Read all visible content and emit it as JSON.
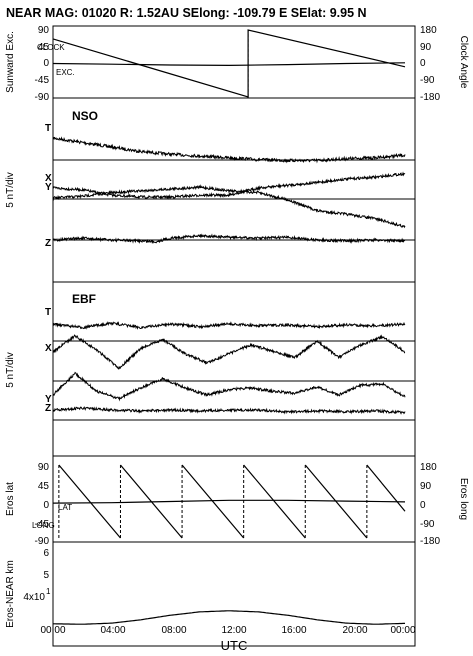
{
  "header": {
    "title": "NEAR MAG: 01020  R: 1.52AU  SElong: -109.79 E  SElat:    9.95 N"
  },
  "panels": {
    "sunward": {
      "left_label": "Sunward Exc.",
      "right_label": "Clock Angle",
      "left_ticks": [
        "90",
        "45",
        "0",
        "-45",
        "-90"
      ],
      "right_ticks": [
        "180",
        "90",
        "0",
        "-90",
        "-180"
      ],
      "inset_labels": [
        "CLOCK",
        "EXC."
      ]
    },
    "nso": {
      "title": "NSO",
      "component_labels": [
        "T",
        "X",
        "Y",
        "Z"
      ],
      "scale_label": "5 nT/div"
    },
    "ebf": {
      "title": "EBF",
      "component_labels": [
        "T",
        "X",
        "Y",
        "Z"
      ],
      "scale_label": "5 nT/div"
    },
    "eros": {
      "left_label": "Eros lat",
      "right_label": "Eros long",
      "left_ticks": [
        "90",
        "45",
        "0",
        "-45",
        "-90"
      ],
      "right_ticks": [
        "180",
        "90",
        "0",
        "-90",
        "-180"
      ],
      "inset_labels": [
        "LAT",
        "LONG"
      ]
    },
    "range": {
      "left_label": "Eros-NEAR km",
      "ticks": [
        "6",
        "5",
        "4x10",
        "1"
      ]
    },
    "xaxis": {
      "label": "UTC",
      "ticks": [
        "00:00",
        "04:00",
        "08:00",
        "12:00",
        "16:00",
        "20:00",
        "00:00"
      ]
    }
  },
  "chart_data": [
    {
      "type": "line",
      "panel": "sunward",
      "x_unit": "hours UTC",
      "xlim": [
        0,
        24
      ],
      "ylim_left": [
        -90,
        90
      ],
      "ylim_right": [
        -180,
        180
      ],
      "series": [
        {
          "name": "CLOCK",
          "axis": "right",
          "x": [
            0,
            13.3,
            13.3,
            24
          ],
          "values": [
            132,
            -180,
            180,
            -18
          ]
        },
        {
          "name": "EXC.",
          "axis": "left",
          "x": [
            0,
            4,
            8,
            12,
            16,
            20,
            24
          ],
          "values": [
            0,
            -2,
            -4,
            -5,
            -3,
            0,
            2
          ]
        }
      ]
    },
    {
      "type": "line",
      "panel": "nso",
      "x_unit": "hours UTC",
      "xlim": [
        0,
        24
      ],
      "y_unit": "nT (5 nT/div)",
      "series": [
        {
          "name": "T",
          "x": [
            0,
            2,
            4,
            6,
            8,
            10,
            12,
            14,
            16,
            18,
            20,
            22,
            24
          ],
          "values": [
            9.5,
            9.0,
            8.5,
            8.0,
            7.7,
            7.5,
            7.3,
            7.1,
            7.0,
            7.0,
            7.2,
            7.3,
            7.6
          ]
        },
        {
          "name": "X",
          "x": [
            0,
            2,
            4,
            6,
            8,
            10,
            12,
            14,
            16,
            18,
            20,
            22,
            24
          ],
          "values": [
            4.0,
            3.8,
            3.2,
            3.0,
            3.0,
            3.2,
            3.2,
            4.0,
            4.3,
            4.6,
            5.0,
            5.2,
            5.6
          ]
        },
        {
          "name": "Y",
          "x": [
            0,
            2,
            4,
            6,
            8,
            10,
            12,
            14,
            16,
            18,
            20,
            22,
            24
          ],
          "values": [
            2.8,
            3.0,
            3.4,
            3.6,
            3.8,
            4.0,
            3.6,
            3.4,
            2.6,
            1.4,
            1.0,
            0.5,
            -0.4
          ]
        },
        {
          "name": "Z",
          "x": [
            0,
            2,
            4,
            6,
            7,
            8,
            10,
            12,
            14,
            16,
            18,
            20,
            22,
            24
          ],
          "values": [
            -4.0,
            -3.8,
            -4.0,
            -4.1,
            -4.2,
            -3.8,
            -3.5,
            -3.7,
            -3.8,
            -3.7,
            -4.0,
            -4.1,
            -4.0,
            -4.1
          ]
        }
      ]
    },
    {
      "type": "line",
      "panel": "ebf",
      "x_unit": "hours UTC",
      "xlim": [
        0,
        24
      ],
      "y_unit": "nT (5 nT/div)",
      "series": [
        {
          "name": "T",
          "x": [
            0,
            2,
            4,
            6,
            8,
            10,
            12,
            14,
            16,
            18,
            20,
            22,
            24
          ],
          "values": [
            9.6,
            9.2,
            9.7,
            9.2,
            9.6,
            9.3,
            9.6,
            9.4,
            9.5,
            9.3,
            9.5,
            9.4,
            9.6
          ]
        },
        {
          "name": "X",
          "x": [
            0,
            1.5,
            3,
            4.5,
            6,
            7.5,
            9,
            10.5,
            12,
            13.5,
            15,
            16.5,
            18,
            19.5,
            21,
            22.5,
            24
          ],
          "values": [
            6.8,
            8.6,
            7.0,
            5.0,
            7.2,
            8.2,
            6.6,
            5.6,
            6.6,
            7.6,
            6.9,
            6.2,
            8.0,
            6.2,
            7.6,
            8.5,
            6.8
          ]
        },
        {
          "name": "Y",
          "x": [
            0,
            1.5,
            3,
            4.5,
            6,
            7.5,
            9,
            10.5,
            12,
            13.5,
            15,
            16.5,
            18,
            19.5,
            21,
            22.5,
            24
          ],
          "values": [
            2.4,
            4.8,
            2.8,
            2.0,
            3.2,
            4.2,
            3.2,
            2.4,
            3.0,
            3.2,
            2.8,
            2.6,
            3.3,
            2.4,
            3.5,
            3.6,
            2.2
          ]
        },
        {
          "name": "Z",
          "x": [
            0,
            2,
            4,
            6,
            8,
            10,
            12,
            14,
            16,
            18,
            20,
            22,
            24
          ],
          "values": [
            1.2,
            1.4,
            1.2,
            1.1,
            1.2,
            1.1,
            1.2,
            1.2,
            1.0,
            1.1,
            1.0,
            1.1,
            0.9
          ]
        }
      ]
    },
    {
      "type": "line",
      "panel": "eros",
      "x_unit": "hours UTC",
      "xlim": [
        0,
        24
      ],
      "ylim_left": [
        -90,
        90
      ],
      "ylim_right": [
        -180,
        180
      ],
      "series": [
        {
          "name": "LONG",
          "axis": "right",
          "x": [
            0.4,
            0.4,
            4.6,
            4.6,
            8.8,
            8.8,
            13.0,
            13.0,
            17.2,
            17.2,
            21.4,
            21.4,
            24
          ],
          "values": [
            -180,
            180,
            -180,
            180,
            -180,
            180,
            -180,
            180,
            -180,
            180,
            -180,
            180,
            -48
          ]
        },
        {
          "name": "LAT",
          "axis": "left",
          "x": [
            0,
            4,
            8,
            12,
            16,
            20,
            24
          ],
          "values": [
            -4,
            -3,
            0,
            3,
            3,
            1,
            -1
          ]
        }
      ]
    },
    {
      "type": "line",
      "panel": "range",
      "x_unit": "hours UTC",
      "xlim": [
        0,
        24
      ],
      "y_unit": "km (x10)",
      "ylim": [
        2.5,
        6.5
      ],
      "series": [
        {
          "name": "Eros-NEAR km",
          "x": [
            0,
            2,
            4,
            6,
            8,
            10,
            12,
            14,
            16,
            18,
            20,
            22,
            24
          ],
          "values": [
            3.22,
            3.2,
            3.25,
            3.4,
            3.6,
            3.75,
            3.8,
            3.75,
            3.6,
            3.4,
            3.25,
            3.2,
            3.24
          ]
        }
      ]
    }
  ]
}
